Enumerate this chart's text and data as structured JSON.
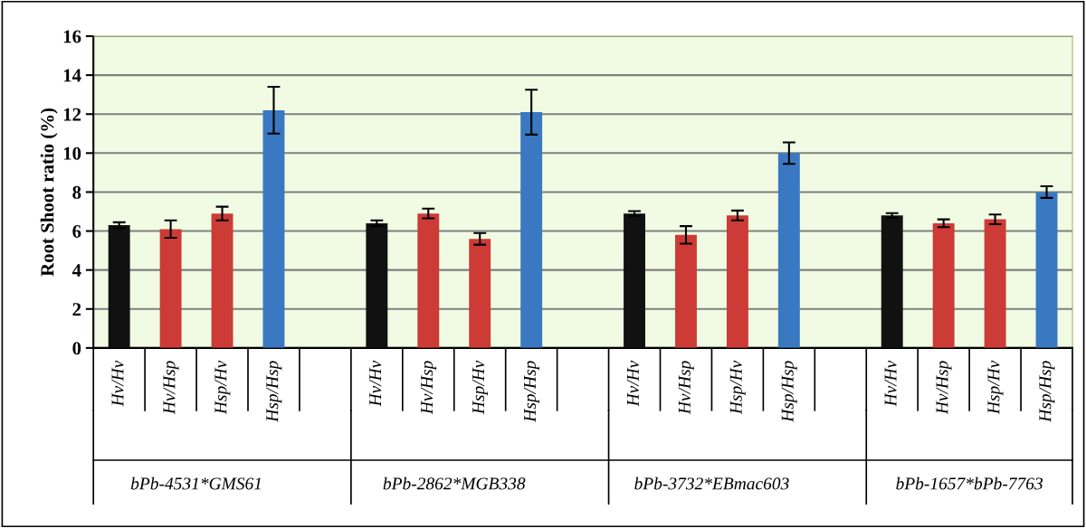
{
  "chart_data": {
    "type": "bar",
    "ylabel": "Root Shoot ratio (%)",
    "categories": [
      "Hv/Hv",
      "Hv/Hsp",
      "Hsp/Hv",
      "Hsp/Hsp",
      null,
      "Hv/Hv",
      "Hv/Hsp",
      "Hsp/Hv",
      "Hsp/Hsp",
      null,
      "Hv/Hv",
      "Hv/Hsp",
      "Hsp/Hv",
      "Hsp/Hsp",
      null,
      "Hv/Hv",
      "Hv/Hsp",
      "Hsp/Hv",
      "Hsp/Hsp"
    ],
    "values": [
      6.3,
      6.1,
      6.9,
      12.2,
      null,
      6.4,
      6.9,
      5.6,
      12.1,
      null,
      6.9,
      5.8,
      6.8,
      10.0,
      null,
      6.8,
      6.4,
      6.6,
      8.0
    ],
    "errors": [
      0.15,
      0.45,
      0.35,
      1.2,
      null,
      0.15,
      0.25,
      0.3,
      1.15,
      null,
      0.12,
      0.45,
      0.25,
      0.55,
      null,
      0.12,
      0.2,
      0.25,
      0.3
    ],
    "colors": [
      "#111111",
      "#cc3b36",
      "#cc3b36",
      "#3a78c2",
      "#ffffff",
      "#111111",
      "#cc3b36",
      "#cc3b36",
      "#3a78c2",
      "#ffffff",
      "#111111",
      "#cc3b36",
      "#cc3b36",
      "#3a78c2",
      "#ffffff",
      "#111111",
      "#cc3b36",
      "#cc3b36",
      "#3a78c2"
    ],
    "annotations": [
      "bPb-4531*GMS61",
      "bPb-2862*MGB338",
      "bPb-3732*EBmac603",
      "bPb-1657*bPb-7763"
    ],
    "ylim": [
      0,
      16
    ],
    "yticks": [
      0,
      2,
      4,
      6,
      8,
      10,
      12,
      14,
      16
    ],
    "grid": "y"
  }
}
